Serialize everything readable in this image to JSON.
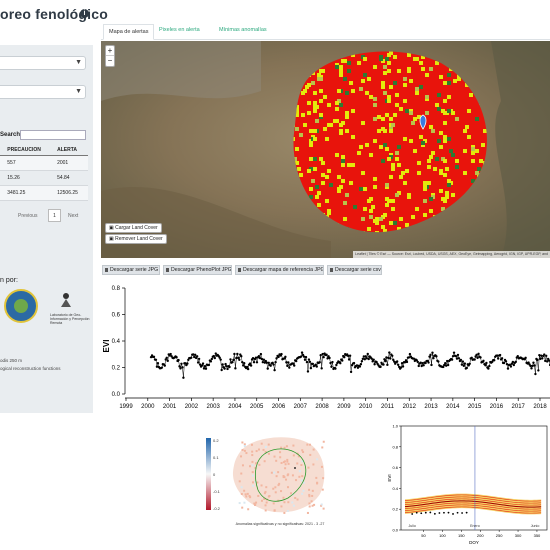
{
  "header": {
    "title": "oreo fenológico",
    "info_icon": "info-icon"
  },
  "sidebar": {
    "search_label": "Search:",
    "search_value": "",
    "table": {
      "columns": [
        "",
        "PRECAUCION",
        "ALERTA"
      ],
      "rows": [
        [
          "",
          "557",
          "2001"
        ],
        [
          "",
          "15.26",
          "54.84"
        ],
        [
          "",
          "3481.25",
          "12506.25"
        ]
      ]
    },
    "pager": {
      "prev": "Previous",
      "page": "1",
      "next": "Next"
    },
    "author_label": "n por:",
    "logo2_text": "Laboratorio de Geo-Información y Percepción Remota",
    "note1": "odis 250 m",
    "note2": "ogical reconstruction functions"
  },
  "tabs": [
    {
      "label": "Mapa de alertas",
      "active": true
    },
    {
      "label": "Pixeles en alerta",
      "active": false
    },
    {
      "label": "Mínimas anomalías",
      "active": false
    }
  ],
  "map": {
    "zoom_in": "+",
    "zoom_out": "−",
    "load_button": "Cargar Land Cover",
    "remove_button": "Remover Land Cover",
    "attribution": "Leaflet | Tiles © Esri — Source: Esri, i-cubed, USDA, USGS, AEX, GeoEye, Getmapping, Aerogrid, IGN, IGP, UPR-EGP, and"
  },
  "downloads": [
    "Descargar serie JPG",
    "Descargar PhenoPlot JPG",
    "Descargar mapa de referencia JPG",
    "Descargar serie csv"
  ],
  "chart_data": [
    {
      "type": "scatter",
      "title": "",
      "xlabel": "",
      "ylabel": "EVI",
      "ylim": [
        0,
        0.8
      ],
      "yticks": [
        "0.0",
        "0.2",
        "0.4",
        "0.6",
        "0.8"
      ],
      "xticks": [
        "1999",
        "2000",
        "2001",
        "2002",
        "2003",
        "2004",
        "2005",
        "2006",
        "2007",
        "2008",
        "2009",
        "2010",
        "2011",
        "2012",
        "2013",
        "2014",
        "2015",
        "2016",
        "2017",
        "2018"
      ],
      "x_start": 2000.15,
      "x_end": 2018.9,
      "y_mean": 0.25,
      "y_amplitude": 0.04,
      "marker_color": "#000000"
    },
    {
      "type": "heatmap",
      "title": "Anomalias significativas y no significativas: 2021 - 3 -27",
      "colorbar_ticks": [
        "0.2",
        "0.1",
        "0",
        "-0.1",
        "-0.2"
      ]
    },
    {
      "type": "line",
      "xlabel": "DOY",
      "ylabel": "EVI",
      "ylim": [
        0,
        1
      ],
      "yticks": [
        "0.0",
        "0.2",
        "0.4",
        "0.6",
        "0.8",
        "1.0"
      ],
      "xticks": [
        "50",
        "100",
        "150",
        "200",
        "250",
        "300",
        "350"
      ],
      "annotations": [
        "Julio",
        "Enero",
        "Junio"
      ],
      "series": [
        {
          "color": "#e00000"
        },
        {
          "color": "#e8c200"
        }
      ]
    }
  ],
  "colors": {
    "accent": "#2aa87d",
    "alert": "#e8140c",
    "precaution": "#e4e90c",
    "sidebar_bg": "#e9edf0"
  }
}
